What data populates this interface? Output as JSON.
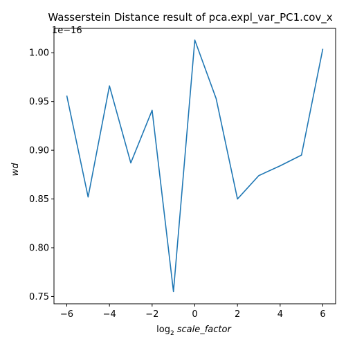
{
  "chart_data": {
    "type": "line",
    "title": "Wasserstein Distance result of pca.expl_var_PC1.cov_x",
    "xlabel_prefix": "log",
    "xlabel_sub": "2",
    "xlabel_var": "scale_factor",
    "ylabel": "wd",
    "y_offset_text": "1e−16",
    "xlim": [
      -6.6,
      6.6
    ],
    "ylim": [
      0.7425,
      1.025
    ],
    "x_ticks": [
      -6,
      -4,
      -2,
      0,
      2,
      4,
      6
    ],
    "x_tick_labels": [
      "−6",
      "−4",
      "−2",
      "0",
      "2",
      "4",
      "6"
    ],
    "y_ticks": [
      0.75,
      0.8,
      0.85,
      0.9,
      0.95,
      1.0
    ],
    "y_tick_labels": [
      "0.75",
      "0.80",
      "0.85",
      "0.90",
      "0.95",
      "1.00"
    ],
    "grid": false,
    "series": [
      {
        "color": "#1f77b4",
        "x": [
          -6,
          -5,
          -4,
          -3,
          -2,
          -1,
          0,
          1,
          2,
          3,
          4,
          5,
          6
        ],
        "y": [
          0.956,
          0.852,
          0.966,
          0.887,
          0.941,
          0.755,
          1.013,
          0.953,
          0.85,
          0.874,
          0.884,
          0.895,
          1.004
        ]
      }
    ]
  }
}
